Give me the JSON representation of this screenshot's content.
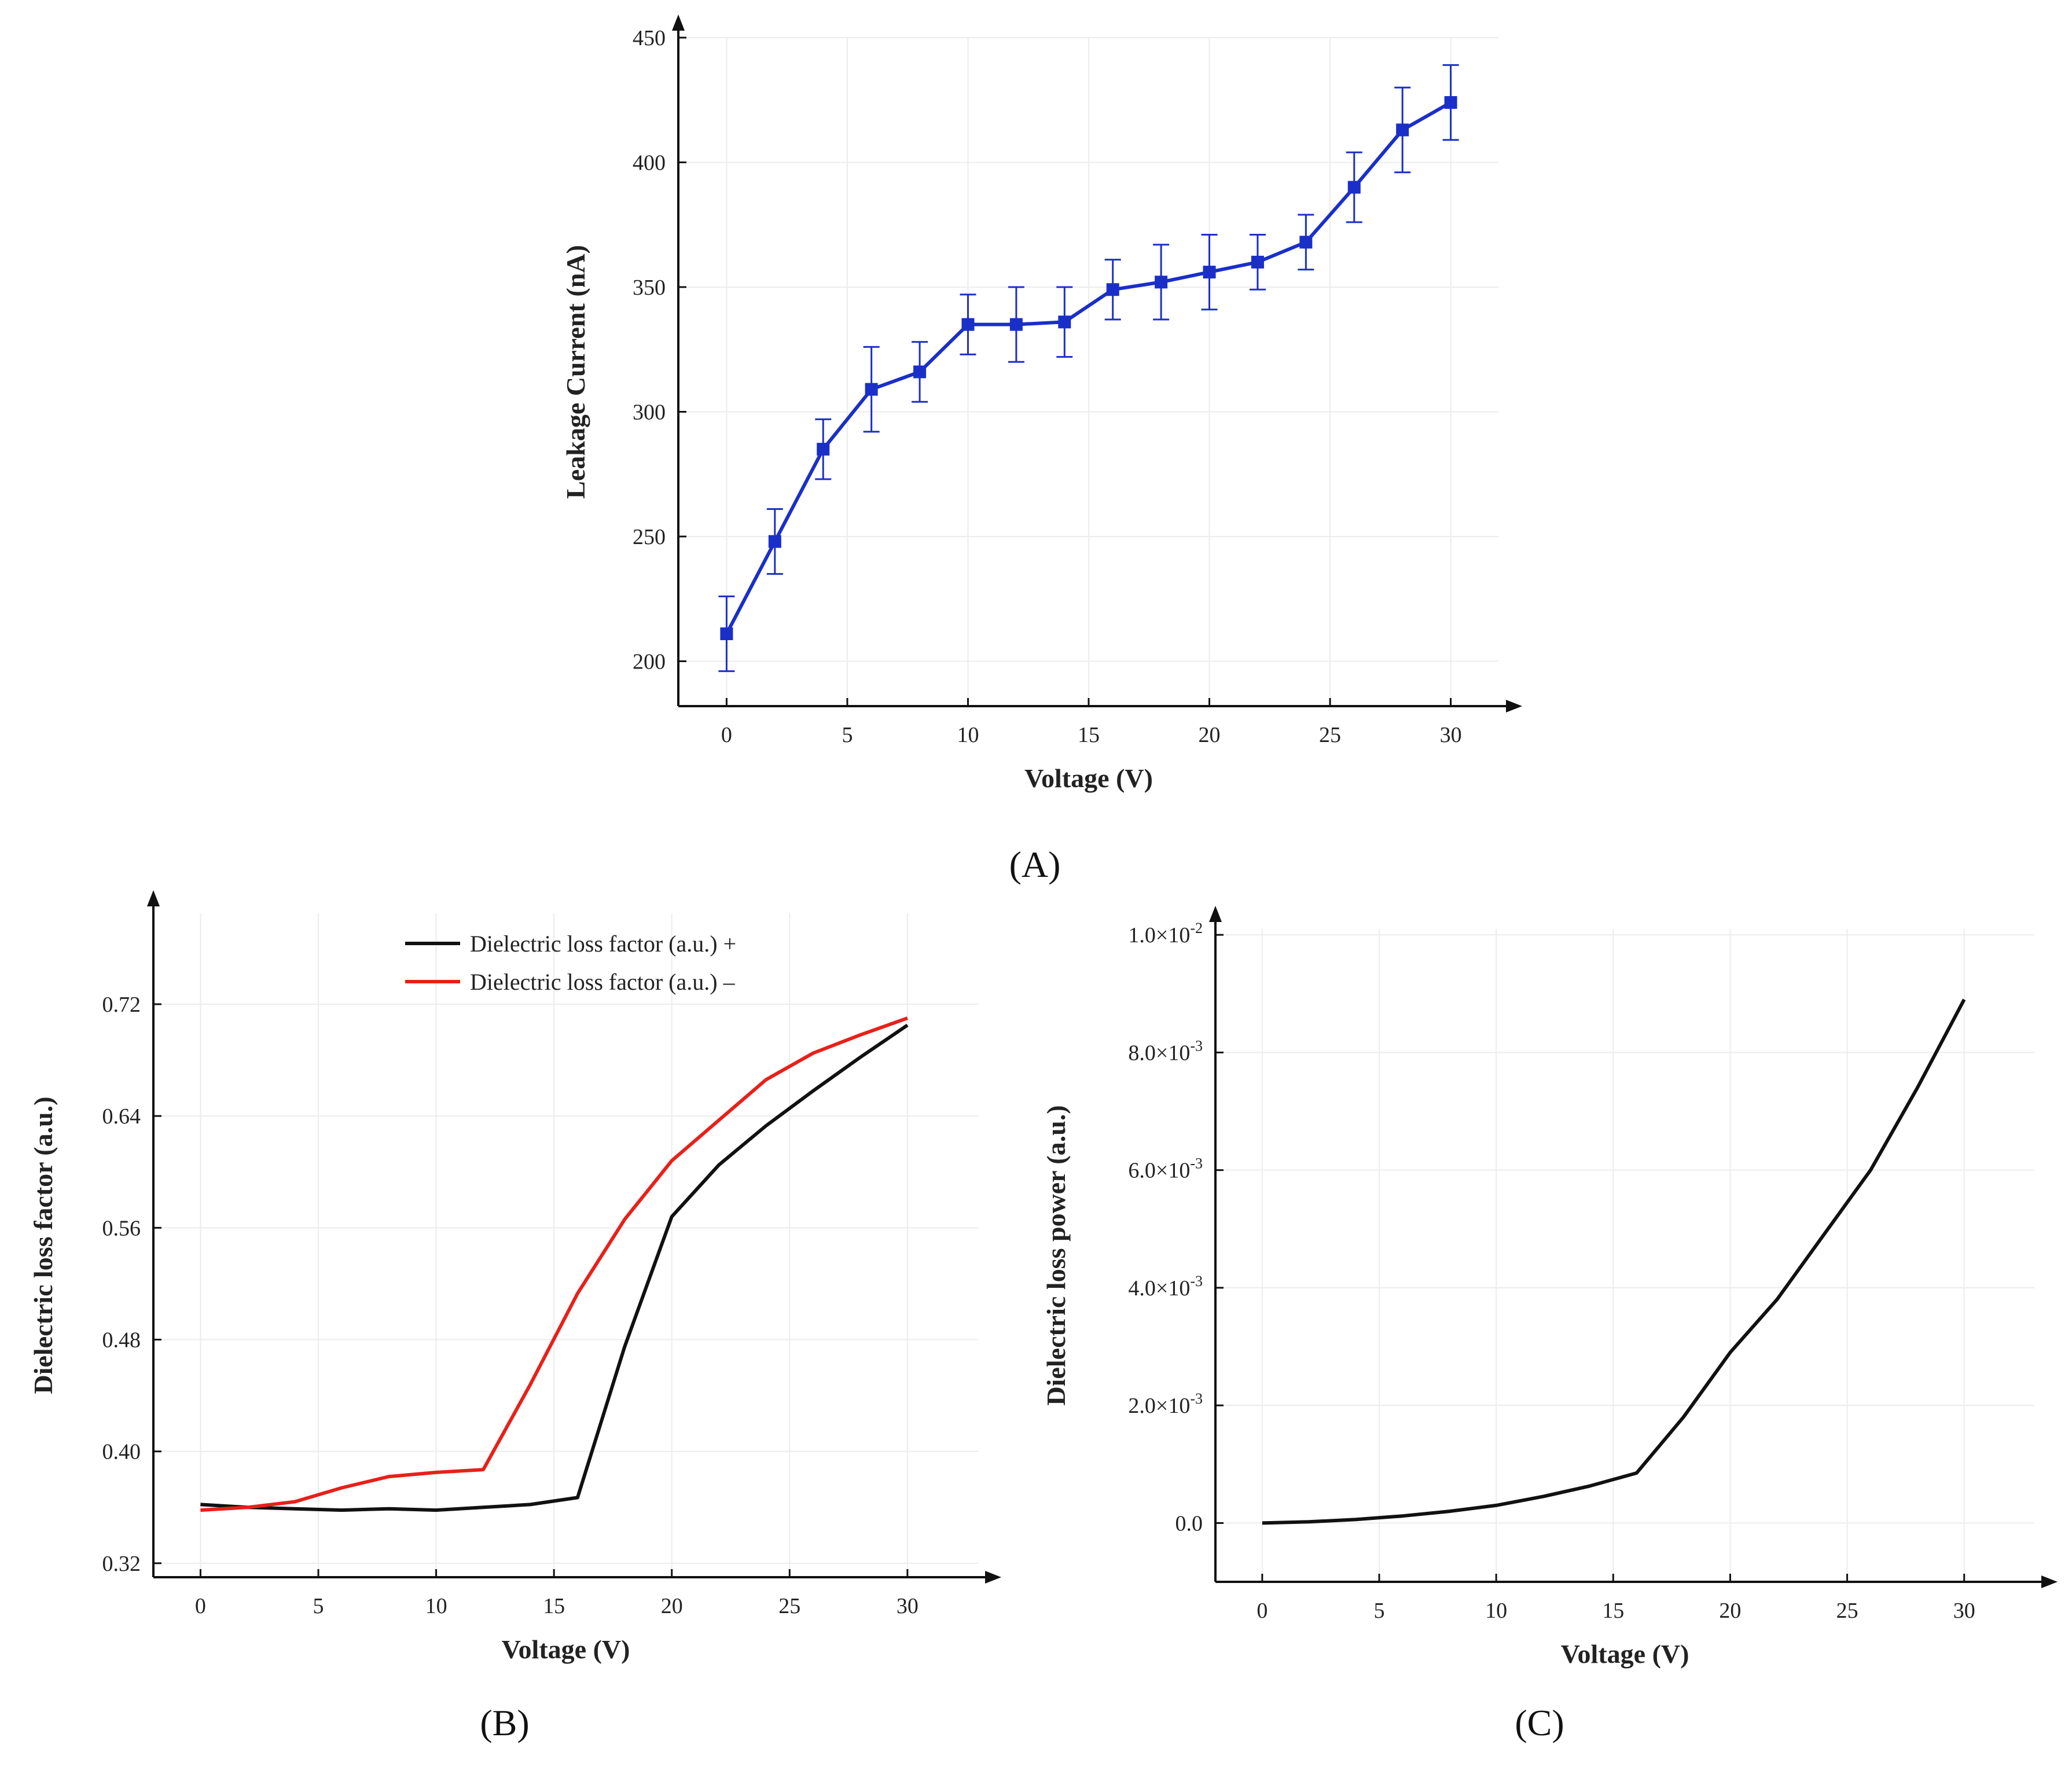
{
  "chart_data": [
    {
      "type": "line",
      "panel": "(A)",
      "xlabel": "Voltage (V)",
      "ylabel": "Leakage Current (nA)",
      "xlim": [
        -2,
        32
      ],
      "ylim": [
        182,
        450
      ],
      "xticks": [
        0,
        5,
        10,
        15,
        20,
        25,
        30
      ],
      "yticks": [
        200,
        250,
        300,
        350,
        400,
        450
      ],
      "grid": true,
      "series": [
        {
          "color": "#1a2fc8",
          "marker": "square",
          "x": [
            0,
            2,
            4,
            6,
            8,
            10,
            12,
            14,
            16,
            18,
            20,
            22,
            24,
            26,
            28,
            30
          ],
          "y": [
            211,
            248,
            285,
            309,
            316,
            335,
            335,
            336,
            349,
            352,
            356,
            360,
            368,
            390,
            413,
            424
          ],
          "error": [
            15,
            13,
            12,
            17,
            12,
            12,
            15,
            14,
            12,
            15,
            15,
            11,
            11,
            14,
            17,
            15
          ]
        }
      ]
    },
    {
      "type": "line",
      "panel": "(B)",
      "xlabel": "Voltage (V)",
      "ylabel": "Dielectric loss factor (a.u.)",
      "xlim": [
        -2,
        33
      ],
      "ylim": [
        0.31,
        0.785
      ],
      "xticks": [
        0,
        5,
        10,
        15,
        20,
        25,
        30
      ],
      "yticks": [
        0.32,
        0.4,
        0.48,
        0.56,
        0.64,
        0.72
      ],
      "ytick_labels": [
        "0.32",
        "0.40",
        "0.48",
        "0.56",
        "0.64",
        "0.72"
      ],
      "grid": true,
      "legend": "top-center",
      "series": [
        {
          "name": "Dielectric loss factor (a.u.) +",
          "color": "#111111",
          "x": [
            0,
            2,
            4,
            6,
            8,
            10,
            12,
            14,
            16,
            18,
            20,
            22,
            24,
            26,
            28,
            30
          ],
          "y": [
            0.362,
            0.36,
            0.359,
            0.358,
            0.359,
            0.358,
            0.36,
            0.362,
            0.367,
            0.475,
            0.568,
            0.605,
            0.633,
            0.658,
            0.682,
            0.705
          ]
        },
        {
          "name": "Dielectric loss factor (a.u.) –",
          "color": "#e8201a",
          "x": [
            0,
            2,
            4,
            6,
            8,
            10,
            12,
            14,
            16,
            18,
            20,
            22,
            24,
            26,
            28,
            30
          ],
          "y": [
            0.358,
            0.36,
            0.364,
            0.374,
            0.382,
            0.385,
            0.387,
            0.448,
            0.513,
            0.566,
            0.608,
            0.637,
            0.666,
            0.685,
            0.698,
            0.71
          ]
        }
      ]
    },
    {
      "type": "line",
      "panel": "(C)",
      "xlabel": "Voltage (V)",
      "ylabel": "Dielectric loss power (a.u.)",
      "xlim": [
        -2,
        33
      ],
      "ylim": [
        -0.001,
        0.0101
      ],
      "xticks": [
        0,
        5,
        10,
        15,
        20,
        25,
        30
      ],
      "yticks": [
        0,
        0.002,
        0.004,
        0.006,
        0.008,
        0.01
      ],
      "ytick_labels": [
        {
          "m": "0.0",
          "e": ""
        },
        {
          "m": "2.0×10",
          "e": "-3"
        },
        {
          "m": "4.0×10",
          "e": "-3"
        },
        {
          "m": "6.0×10",
          "e": "-3"
        },
        {
          "m": "8.0×10",
          "e": "-3"
        },
        {
          "m": "1.0×10",
          "e": "-2"
        }
      ],
      "grid": true,
      "series": [
        {
          "color": "#111111",
          "x": [
            0,
            2,
            4,
            6,
            8,
            10,
            12,
            14,
            16,
            18,
            20,
            22,
            24,
            26,
            28,
            30
          ],
          "y": [
            0.0,
            2e-05,
            6e-05,
            0.00012,
            0.0002,
            0.0003,
            0.00045,
            0.00063,
            0.00085,
            0.0018,
            0.0029,
            0.0038,
            0.0049,
            0.006,
            0.0074,
            0.0089
          ]
        }
      ]
    }
  ]
}
